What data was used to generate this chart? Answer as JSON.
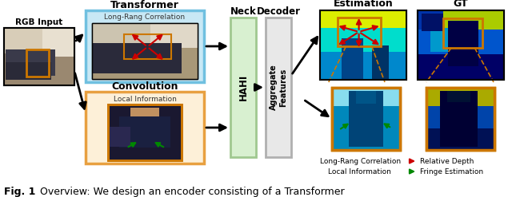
{
  "bg_color": "#ffffff",
  "fig_width": 6.4,
  "fig_height": 2.47,
  "colors": {
    "transformer_box_fill": "#c8e8f5",
    "transformer_box_edge": "#70c0e0",
    "convolution_box_fill": "#fdf0d8",
    "convolution_box_edge": "#e8a040",
    "neck_fill": "#d8f0d0",
    "neck_edge": "#a0c890",
    "decoder_fill": "#e8e8e8",
    "decoder_edge": "#b0b0b0",
    "orange": "#cc7700",
    "red": "#cc0000",
    "green": "#008800",
    "black": "#000000",
    "white": "#ffffff",
    "dark_gray": "#333333",
    "est_top_bg": "#00aacc",
    "est_yellow": "#ccff00",
    "est_cyan": "#00ffee",
    "est_blue": "#0066cc",
    "gt_dark_blue": "#000066",
    "gt_blue": "#0044aa",
    "gt_cyan": "#00aacc",
    "gt_yellow": "#aacc00",
    "bot_est_cyan": "#00ccee",
    "bot_est_light": "#88ddee",
    "bot_est_dark": "#004488",
    "bot_gt_yellow": "#ccaa00",
    "bot_gt_blue": "#003388",
    "bot_gt_dark": "#000044"
  },
  "labels": {
    "rgb_input": "RGB Input",
    "transformer": "Transformer",
    "long_rang_corr": "Long-Rang Correlation",
    "convolution": "Convolution",
    "local_info": "Local Information",
    "neck": "Neck",
    "decoder": "Decoder",
    "hahi": "HAHI",
    "aggregate": "Aggregate\nFeatures",
    "estimation": "Estimation",
    "gt": "GT",
    "leg1_key": "Long-Rang Correlation",
    "leg1_val": "Relative Depth",
    "leg2_key": "Local Information",
    "leg2_val": "Fringe Estimation",
    "caption_bold": "Fig. 1",
    "caption_rest": "  Overview: We design an encoder consisting of a Transformer"
  }
}
